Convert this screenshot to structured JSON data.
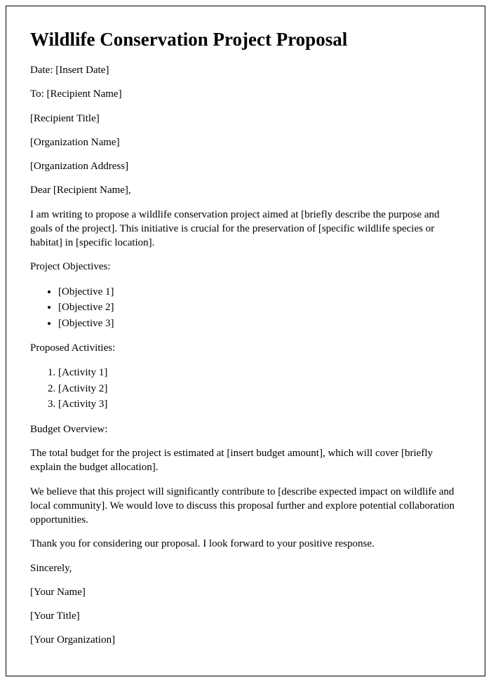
{
  "title": "Wildlife Conservation Project Proposal",
  "date_line": "Date: [Insert Date]",
  "to_line": "To: [Recipient Name]",
  "recipient_title": "[Recipient Title]",
  "org_name": "[Organization Name]",
  "org_address": "[Organization Address]",
  "salutation": "Dear [Recipient Name],",
  "intro": "I am writing to propose a wildlife conservation project aimed at [briefly describe the purpose and goals of the project]. This initiative is crucial for the preservation of [specific wildlife species or habitat] in [specific location].",
  "objectives_heading": "Project Objectives:",
  "objectives": [
    "[Objective 1]",
    "[Objective 2]",
    "[Objective 3]"
  ],
  "activities_heading": "Proposed Activities:",
  "activities": [
    "[Activity 1]",
    "[Activity 2]",
    "[Activity 3]"
  ],
  "budget_heading": "Budget Overview:",
  "budget_body": "The total budget for the project is estimated at [insert budget amount], which will cover [briefly explain the budget allocation].",
  "impact": "We believe that this project will significantly contribute to [describe expected impact on wildlife and local community]. We would love to discuss this proposal further and explore potential collaboration opportunities.",
  "thanks": "Thank you for considering our proposal. I look forward to your positive response.",
  "closing": "Sincerely,",
  "your_name": "[Your Name]",
  "your_title": "[Your Title]",
  "your_org": "[Your Organization]"
}
